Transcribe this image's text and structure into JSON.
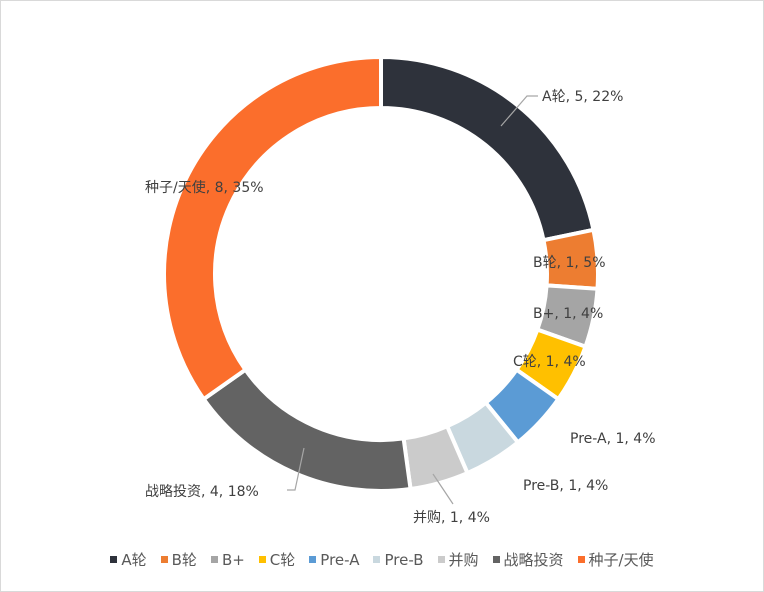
{
  "chart_data": {
    "type": "pie",
    "variant": "donut",
    "title": "",
    "categories": [
      "A轮",
      "B轮",
      "B+",
      "C轮",
      "Pre-A",
      "Pre-B",
      "并购",
      "战略投资",
      "种子/天使"
    ],
    "values": [
      5,
      1,
      1,
      1,
      1,
      1,
      1,
      4,
      8
    ],
    "percent_labels": [
      "22%",
      "5%",
      "4%",
      "4%",
      "4%",
      "4%",
      "4%",
      "18%",
      "35%"
    ],
    "colors": [
      "#2e323b",
      "#ed7d31",
      "#a5a5a5",
      "#ffc000",
      "#5b9bd5",
      "#c9d8df",
      "#cbcbcb",
      "#636363",
      "#fb6e2c"
    ],
    "data_labels": [
      "A轮, 5, 22%",
      "B轮, 1, 5%",
      "B+, 1, 4%",
      "C轮, 1, 4%",
      "Pre-A, 1, 4%",
      "Pre-B, 1, 4%",
      "并购, 1, 4%",
      "战略投资, 4, 18%",
      "种子/天使, 8, 35%"
    ],
    "legend_position": "bottom",
    "start_angle_deg": 0,
    "direction": "clockwise"
  },
  "legend": {
    "items": [
      {
        "label": "A轮",
        "color": "#2e323b"
      },
      {
        "label": "B轮",
        "color": "#ed7d31"
      },
      {
        "label": "B+",
        "color": "#a5a5a5"
      },
      {
        "label": "C轮",
        "color": "#ffc000"
      },
      {
        "label": "Pre-A",
        "color": "#5b9bd5"
      },
      {
        "label": "Pre-B",
        "color": "#c9d8df"
      },
      {
        "label": "并购",
        "color": "#cbcbcb"
      },
      {
        "label": "战略投资",
        "color": "#636363"
      },
      {
        "label": "种子/天使",
        "color": "#fb6e2c"
      }
    ]
  }
}
